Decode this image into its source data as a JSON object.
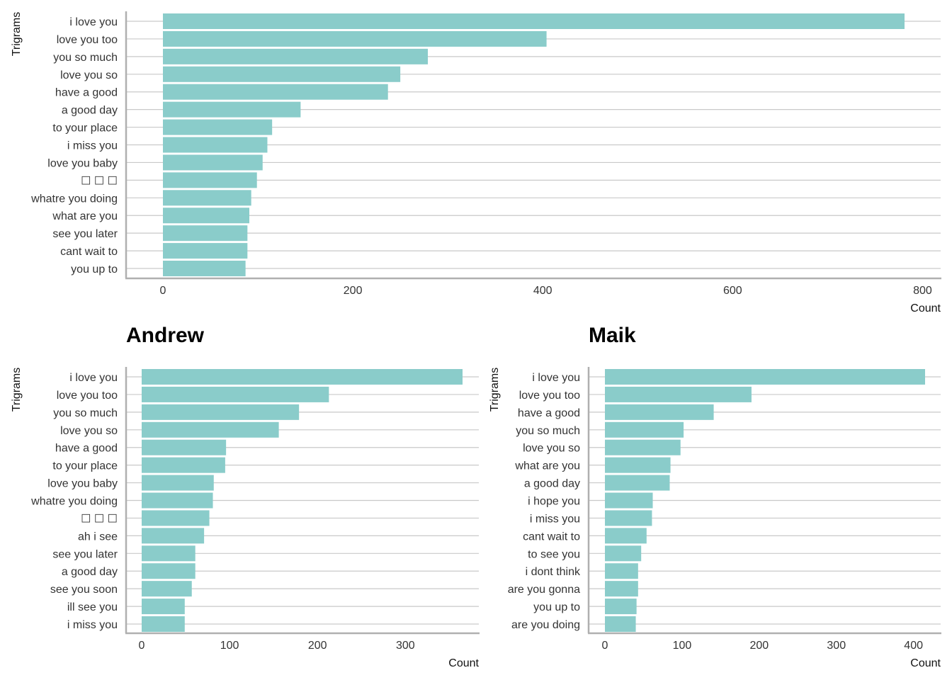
{
  "colors": {
    "bar": "#8ACCCA",
    "grid": "#C9C9C9",
    "axis": "#B0B0B0"
  },
  "chart_data": [
    {
      "type": "bar",
      "orientation": "horizontal",
      "title": "",
      "xlabel": "Count",
      "ylabel": "Trigrams",
      "xlim": [
        0,
        800
      ],
      "xticks": [
        0,
        200,
        400,
        600,
        800
      ],
      "grid": "horizontal",
      "categories": [
        "i love you",
        "love you too",
        "you so much",
        "love you so",
        "have a good",
        "a good day",
        "to your place",
        "i miss you",
        "love you baby",
        "☐ ☐ ☐",
        "whatre you doing",
        "what are you",
        "see you later",
        "cant wait to",
        "you up to"
      ],
      "values": [
        781,
        404,
        279,
        250,
        237,
        145,
        115,
        110,
        105,
        99,
        93,
        91,
        89,
        89,
        87
      ]
    },
    {
      "type": "bar",
      "orientation": "horizontal",
      "title": "Andrew",
      "xlabel": "Count",
      "ylabel": "Trigrams",
      "xlim": [
        0,
        370
      ],
      "xticks": [
        0,
        100,
        200,
        300
      ],
      "grid": "horizontal",
      "categories": [
        "i love you",
        "love you too",
        "you so much",
        "love you so",
        "have a good",
        "to your place",
        "love you baby",
        "whatre you doing",
        "☐ ☐ ☐",
        "ah i see",
        "see you later",
        "a good day",
        "see you soon",
        "ill see you",
        "i miss you"
      ],
      "values": [
        365,
        213,
        179,
        156,
        96,
        95,
        82,
        81,
        77,
        71,
        61,
        61,
        57,
        49,
        49
      ]
    },
    {
      "type": "bar",
      "orientation": "horizontal",
      "title": "Maik",
      "xlabel": "Count",
      "ylabel": "Trigrams",
      "xlim": [
        0,
        420
      ],
      "xticks": [
        0,
        100,
        200,
        300,
        400
      ],
      "grid": "horizontal",
      "categories": [
        "i love you",
        "love you too",
        "have a good",
        "you so much",
        "love you so",
        "what are you",
        "a good day",
        "i hope you",
        "i miss you",
        "cant wait to",
        "to see you",
        "i dont think",
        "are you gonna",
        "you up to",
        "are you doing"
      ],
      "values": [
        415,
        190,
        141,
        102,
        98,
        85,
        84,
        62,
        61,
        54,
        47,
        43,
        43,
        41,
        40
      ]
    }
  ]
}
